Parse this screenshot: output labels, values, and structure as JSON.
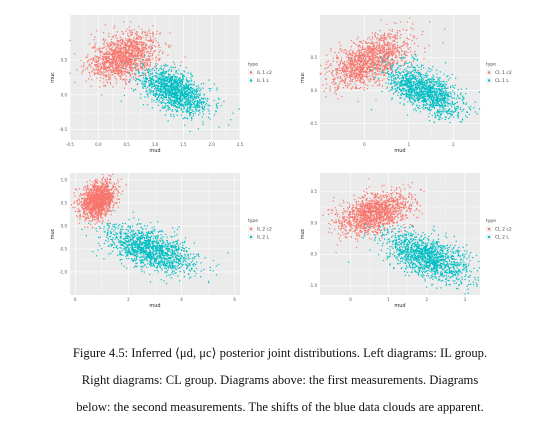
{
  "figure": {
    "caption_lines": [
      "Figure 4.5: Inferred ⟨μd, μc⟩ posterior joint distributions. Left diagrams: IL group.",
      "Right diagrams: CL group. Diagrams above: the first measurements. Diagrams",
      "below: the second measurements. The shifts of the blue data clouds are apparent."
    ]
  },
  "colors": {
    "red": "#F8766D",
    "teal": "#00BFC4",
    "panel_bg": "#EBEBEB",
    "grid": "#FFFFFF"
  },
  "chart_data": [
    {
      "type": "scatter",
      "xlabel": "mud",
      "ylabel": "muc",
      "xlim": [
        -0.5,
        2.5
      ],
      "ylim": [
        -0.65,
        1.15
      ],
      "xticks": [
        "-0.5",
        "0.0",
        "0.5",
        "1.0",
        "1.5",
        "2.0",
        "2.5"
      ],
      "xtick_values": [
        -0.5,
        0,
        0.5,
        1,
        1.5,
        2,
        2.5
      ],
      "yticks": [
        "-0.5",
        "0.0",
        "0.5"
      ],
      "ytick_values": [
        -0.5,
        0,
        0.5
      ],
      "legend": {
        "title": "type",
        "position": "right"
      },
      "series": [
        {
          "name": "IL 1 c2",
          "color": "#F8766D",
          "center": [
            0.45,
            0.55
          ],
          "spread": [
            0.3,
            0.17
          ],
          "corr": 0.35
        },
        {
          "name": "IL 1 L",
          "color": "#00BFC4",
          "center": [
            1.35,
            0.05
          ],
          "spread": [
            0.3,
            0.17
          ],
          "corr": -0.55
        }
      ]
    },
    {
      "type": "scatter",
      "xlabel": "mud",
      "ylabel": "muc",
      "xlim": [
        -1.0,
        2.6
      ],
      "ylim": [
        -0.75,
        1.15
      ],
      "xticks": [
        "0",
        "1",
        "2"
      ],
      "xtick_values": [
        0,
        1,
        2
      ],
      "yticks": [
        "-0.5",
        "0.0",
        "0.5"
      ],
      "ytick_values": [
        -0.5,
        0,
        0.5
      ],
      "legend": {
        "title": "type",
        "position": "right"
      },
      "series": [
        {
          "name": "CL 1 c2",
          "color": "#F8766D",
          "center": [
            0.1,
            0.45
          ],
          "spread": [
            0.45,
            0.2
          ],
          "corr": 0.5
        },
        {
          "name": "CL 1 L",
          "color": "#00BFC4",
          "center": [
            1.35,
            0.0
          ],
          "spread": [
            0.42,
            0.19
          ],
          "corr": -0.55
        }
      ]
    },
    {
      "type": "scatter",
      "xlabel": "mud",
      "ylabel": "muc",
      "xlim": [
        -0.2,
        6.2
      ],
      "ylim": [
        -1.5,
        1.15
      ],
      "xticks": [
        "0",
        "2",
        "4",
        "6"
      ],
      "xtick_values": [
        0,
        2,
        4,
        6
      ],
      "yticks": [
        "-1.0",
        "-0.5",
        "0.0",
        "0.5",
        "1.0"
      ],
      "ytick_values": [
        -1,
        -0.5,
        0,
        0.5,
        1
      ],
      "legend": {
        "title": "type",
        "position": "right"
      },
      "series": [
        {
          "name": "IL 2 c2",
          "color": "#F8766D",
          "center": [
            0.85,
            0.55
          ],
          "spread": [
            0.32,
            0.2
          ],
          "corr": 0.3
        },
        {
          "name": "IL 2 L",
          "color": "#00BFC4",
          "center": [
            2.8,
            -0.5
          ],
          "spread": [
            0.85,
            0.25
          ],
          "corr": -0.55
        }
      ]
    },
    {
      "type": "scatter",
      "xlabel": "mud",
      "ylabel": "muc",
      "xlim": [
        -0.8,
        3.4
      ],
      "ylim": [
        -1.15,
        0.8
      ],
      "xticks": [
        "0",
        "1",
        "2",
        "3"
      ],
      "xtick_values": [
        0,
        1,
        2,
        3
      ],
      "yticks": [
        "-1.0",
        "-0.5",
        "0.0",
        "0.5"
      ],
      "ytick_values": [
        -1,
        -0.5,
        0,
        0.5
      ],
      "legend": {
        "title": "type",
        "position": "right"
      },
      "series": [
        {
          "name": "CL 2 c2",
          "color": "#F8766D",
          "center": [
            0.6,
            0.15
          ],
          "spread": [
            0.5,
            0.17
          ],
          "corr": 0.4
        },
        {
          "name": "CL 2 L",
          "color": "#00BFC4",
          "center": [
            2.05,
            -0.55
          ],
          "spread": [
            0.55,
            0.2
          ],
          "corr": -0.55
        }
      ]
    }
  ]
}
